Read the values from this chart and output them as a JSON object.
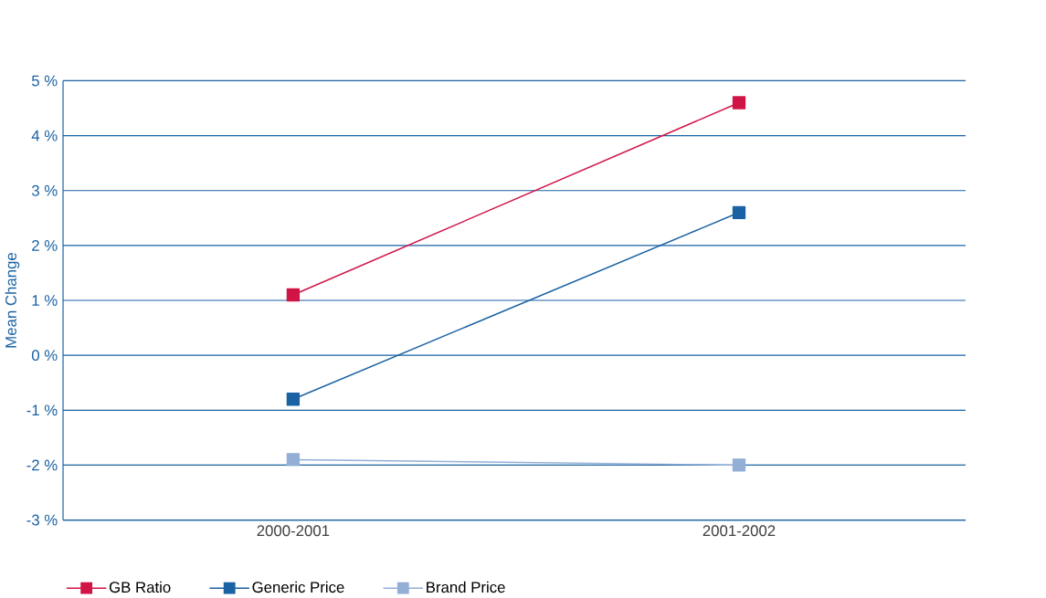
{
  "chart_data": {
    "type": "line",
    "ylabel": "Mean Change",
    "categories": [
      "2000-2001",
      "2001-2002"
    ],
    "series": [
      {
        "name": "GB Ratio",
        "color": "#d01446",
        "values": [
          1.1,
          4.6
        ]
      },
      {
        "name": "Generic Price",
        "color": "#1a62a3",
        "values": [
          -0.8,
          2.6
        ]
      },
      {
        "name": "Brand Price",
        "color": "#93afd6",
        "values": [
          -1.9,
          -2.0
        ]
      }
    ],
    "ylim": [
      -3,
      5
    ],
    "yticks": [
      {
        "value": -3,
        "label": "-3 %"
      },
      {
        "value": -2,
        "label": "-2 %"
      },
      {
        "value": -1,
        "label": "-1 %"
      },
      {
        "value": 0,
        "label": "0 %"
      },
      {
        "value": 1,
        "label": "1 %"
      },
      {
        "value": 2,
        "label": "2 %"
      },
      {
        "value": 3,
        "label": "3 %"
      },
      {
        "value": 4,
        "label": "4 %"
      },
      {
        "value": 5,
        "label": "5 %"
      }
    ],
    "grid": "y",
    "legend": "bottom left",
    "marker": "square",
    "line_style": "solid"
  }
}
